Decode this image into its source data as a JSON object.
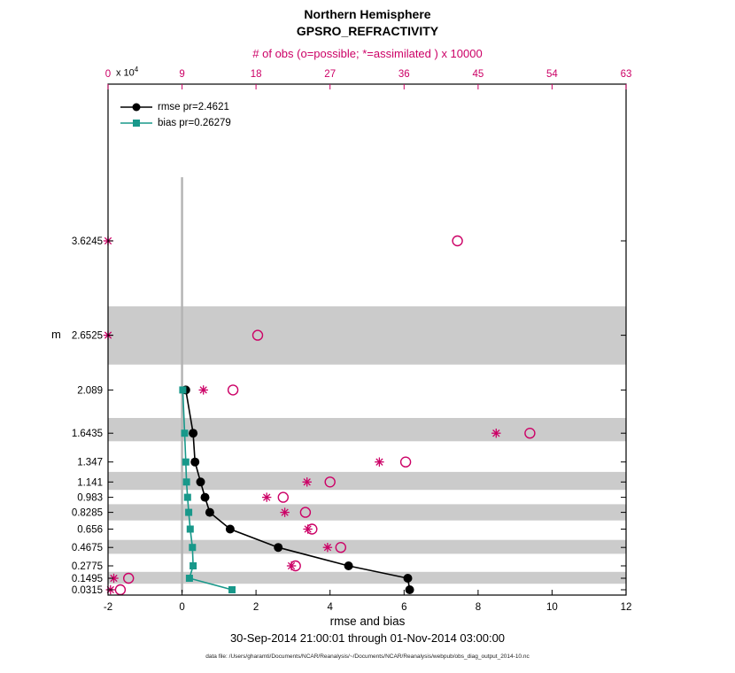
{
  "title": {
    "line1": "Northern Hemisphere",
    "line2": "GPSRO_REFRACTIVITY"
  },
  "top_axis": {
    "label": "# of obs (o=possible; *=assimilated ) x 10000",
    "ticks": [
      0,
      9,
      18,
      27,
      36,
      45,
      54,
      63
    ],
    "color": "#cc0066"
  },
  "y_axis": {
    "label": "m",
    "multiplier": "x 10",
    "exponent": "4",
    "ticks": [
      "3.6245",
      "2.6525",
      "2.089",
      "1.6435",
      "1.347",
      "1.141",
      "0.983",
      "0.8285",
      "0.656",
      "0.4675",
      "0.2775",
      "0.1495",
      "0.0315"
    ]
  },
  "x_axis": {
    "label": "rmse and bias",
    "ticks": [
      -2,
      0,
      2,
      4,
      6,
      8,
      10,
      12
    ]
  },
  "legend": [
    {
      "label": "rmse pr=2.4621",
      "color": "#000000",
      "marker": "filled-circle"
    },
    {
      "label": "bias pr=0.26279",
      "color": "#18988a",
      "marker": "filled-square"
    }
  ],
  "footer": {
    "date_range": "30-Sep-2014 21:00:01 through 01-Nov-2014 03:00:00",
    "data_file": "data file: /Users/gharamti/Documents/NCAR/Reanalysis/~/Documents/NCAR/Reanalysis/webpub/obs_diag_output_2014-10.nc"
  },
  "chart_data": {
    "type": "line",
    "title": "Northern Hemisphere GPSRO_REFRACTIVITY",
    "ylabel": "m (height x 10^4)",
    "xlabel_bottom": "rmse and bias",
    "xlabel_top": "# of obs (o=possible; *=assimilated ) x 10000",
    "levels": [
      3.6245,
      2.6525,
      2.089,
      1.6435,
      1.347,
      1.141,
      0.983,
      0.8285,
      0.656,
      0.4675,
      0.2775,
      0.1495,
      0.0315
    ],
    "x_bottom": {
      "min": -2,
      "max": 12
    },
    "x_top": {
      "min": 0,
      "max": 63
    },
    "y": {
      "min": -0.0235,
      "max": 5.2385
    },
    "grid": false,
    "band_color": "#cbcbcb",
    "shaded_bands": [
      [
        2.35,
        2.95
      ],
      [
        1.56,
        1.8
      ],
      [
        1.06,
        1.245
      ],
      [
        0.745,
        0.912
      ],
      [
        0.402,
        0.545
      ],
      [
        0.093,
        0.215
      ]
    ],
    "zero_line": {
      "x": 0,
      "y_from": 0.0,
      "y_to": 4.28,
      "color": "#b3b3b3"
    },
    "series": [
      {
        "name": "rmse",
        "axis": "bottom",
        "marker": "filled-circle",
        "color": "#000000",
        "line": true,
        "levels": [
          2.089,
          1.6435,
          1.347,
          1.141,
          0.983,
          0.8285,
          0.656,
          0.4675,
          0.2775,
          0.1495,
          0.0315
        ],
        "values": [
          0.1,
          0.3,
          0.35,
          0.5,
          0.62,
          0.75,
          1.3,
          2.6,
          4.5,
          6.1,
          6.15
        ]
      },
      {
        "name": "bias",
        "axis": "bottom",
        "marker": "filled-square",
        "color": "#18988a",
        "line": true,
        "levels": [
          2.089,
          1.6435,
          1.347,
          1.141,
          0.983,
          0.8285,
          0.656,
          0.4675,
          0.2775,
          0.1495,
          0.0315
        ],
        "values": [
          0.02,
          0.07,
          0.1,
          0.12,
          0.15,
          0.18,
          0.22,
          0.28,
          0.3,
          0.2,
          1.35
        ]
      },
      {
        "name": "possible-obs",
        "axis": "top",
        "marker": "open-circle",
        "color": "#cc0066",
        "line": false,
        "levels": [
          3.6245,
          2.6525,
          2.089,
          1.6435,
          1.347,
          1.141,
          0.983,
          0.8285,
          0.656,
          0.4675,
          0.2775,
          0.1495,
          0.0315
        ],
        "values": [
          42.5,
          18.2,
          15.2,
          51.3,
          36.2,
          27.0,
          21.3,
          24.0,
          24.8,
          28.3,
          22.8,
          2.5,
          1.5
        ]
      },
      {
        "name": "assimilated-obs",
        "axis": "top",
        "marker": "asterisk",
        "color": "#cc0066",
        "line": false,
        "levels": [
          3.6245,
          2.6525,
          2.089,
          1.6435,
          1.347,
          1.141,
          0.983,
          0.8285,
          0.656,
          0.4675,
          0.2775,
          0.1495,
          0.0315
        ],
        "values": [
          0.0,
          0.0,
          11.6,
          47.2,
          33.0,
          24.2,
          19.3,
          21.5,
          24.3,
          26.7,
          22.3,
          0.7,
          0.3
        ]
      }
    ]
  }
}
